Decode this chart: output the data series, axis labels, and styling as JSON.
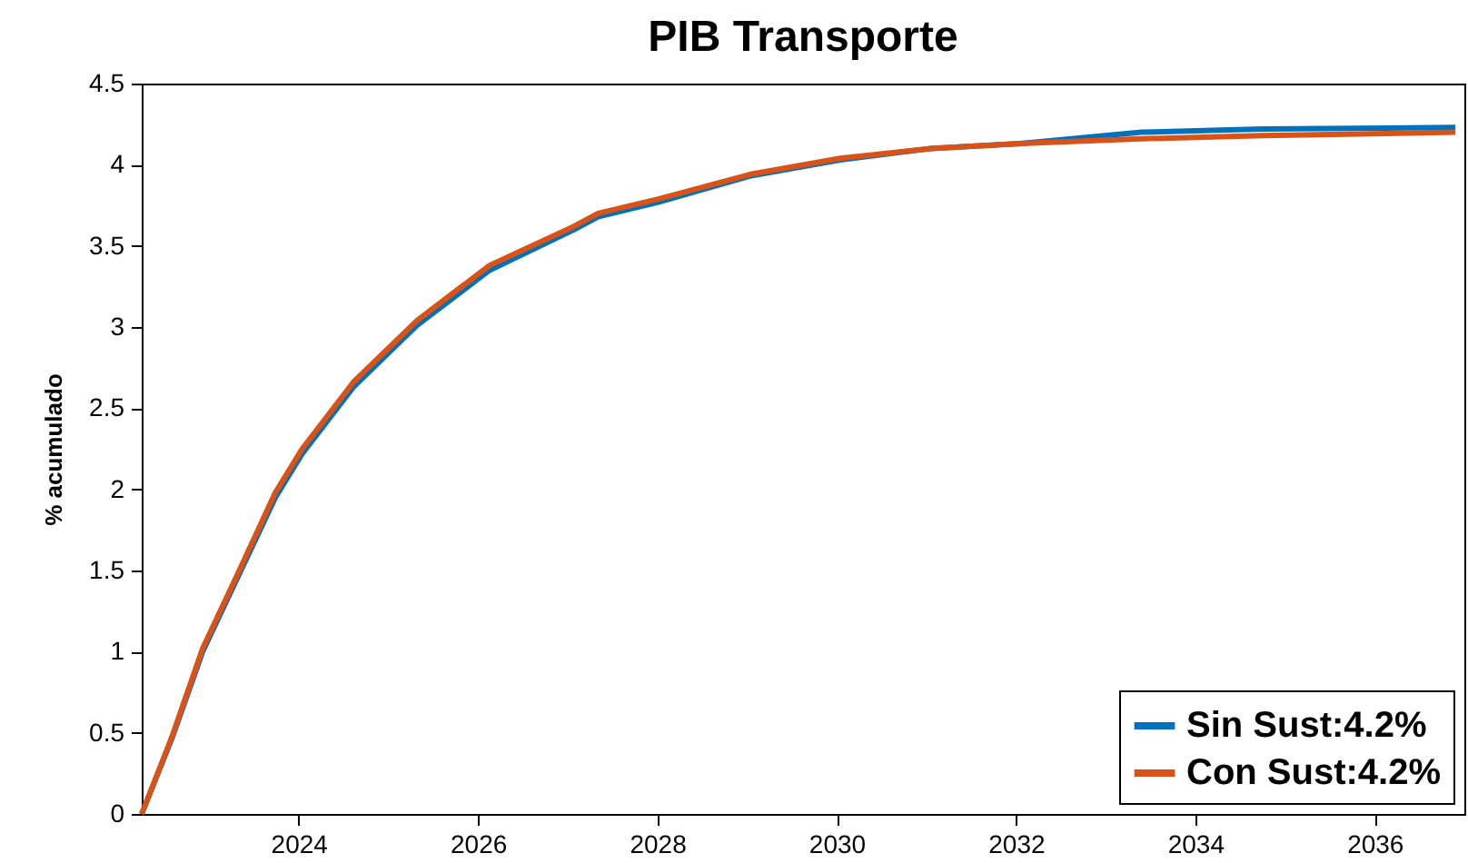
{
  "chart_data": {
    "type": "line",
    "title": "PIB Transporte",
    "ylabel": "% acumulado",
    "x": [
      2022.25,
      2022.59,
      2022.93,
      2023.33,
      2023.74,
      2024.04,
      2024.61,
      2025.32,
      2026.13,
      2027.07,
      2027.34,
      2028.02,
      2029.03,
      2030.04,
      2031.05,
      2032.05,
      2033.4,
      2034.75,
      2036.9
    ],
    "series": [
      {
        "name": "Sin Sust:4.2%",
        "color": "#0072bd",
        "values": [
          0,
          0.47,
          1.0,
          1.47,
          1.95,
          2.22,
          2.63,
          3.01,
          3.35,
          3.6,
          3.68,
          3.77,
          3.93,
          4.03,
          4.1,
          4.13,
          4.2,
          4.22,
          4.23
        ]
      },
      {
        "name": "Con Sust:4.2%",
        "color": "#d95319",
        "values": [
          0,
          0.48,
          1.02,
          1.49,
          1.98,
          2.25,
          2.66,
          3.04,
          3.38,
          3.62,
          3.7,
          3.79,
          3.94,
          4.04,
          4.1,
          4.13,
          4.16,
          4.18,
          4.2
        ]
      }
    ],
    "xlim": [
      2022.25,
      2037
    ],
    "xticks": [
      2024,
      2026,
      2028,
      2030,
      2032,
      2034,
      2036
    ],
    "ylim": [
      0,
      4.5
    ],
    "yticks": [
      0,
      0.5,
      1,
      1.5,
      2,
      2.5,
      3,
      3.5,
      4,
      4.5
    ],
    "grid": false,
    "legend": "bottom right",
    "marker": "none",
    "line_style": "solid"
  }
}
